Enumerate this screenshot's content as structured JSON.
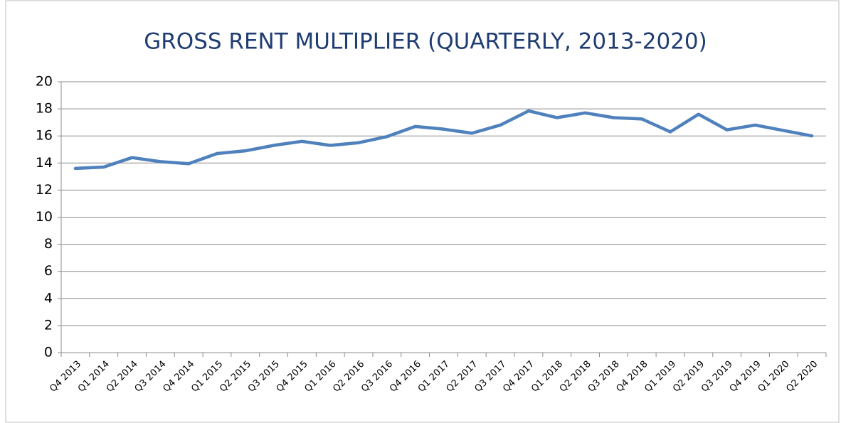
{
  "chart_data": {
    "type": "line",
    "title": "GROSS RENT MULTIPLIER (QUARTERLY, 2013-2020)",
    "categories": [
      "Q4 2013",
      "Q1 2014",
      "Q2 2014",
      "Q3 2014",
      "Q4 2014",
      "Q1 2015",
      "Q2 2015",
      "Q3 2015",
      "Q4 2015",
      "Q1 2016",
      "Q2 2016",
      "Q3 2016",
      "Q4 2016",
      "Q1 2017",
      "Q2 2017",
      "Q3 2017",
      "Q4 2017",
      "Q1 2018",
      "Q2 2018",
      "Q3 2018",
      "Q4 2018",
      "Q1 2019",
      "Q2 2019",
      "Q3 2019",
      "Q4 2019",
      "Q1 2020",
      "Q2 2020"
    ],
    "values": [
      13.6,
      13.7,
      14.4,
      14.1,
      13.95,
      14.7,
      14.9,
      15.3,
      15.6,
      15.3,
      15.5,
      15.95,
      16.7,
      16.5,
      16.2,
      16.8,
      17.85,
      17.35,
      17.7,
      17.35,
      17.25,
      16.3,
      17.6,
      16.45,
      16.8,
      16.4,
      16.0
    ],
    "color": "#4f81bd",
    "ylim": [
      0,
      20
    ],
    "yticks": [
      0,
      2,
      4,
      6,
      8,
      10,
      12,
      14,
      16,
      18,
      20
    ],
    "grid": true
  }
}
